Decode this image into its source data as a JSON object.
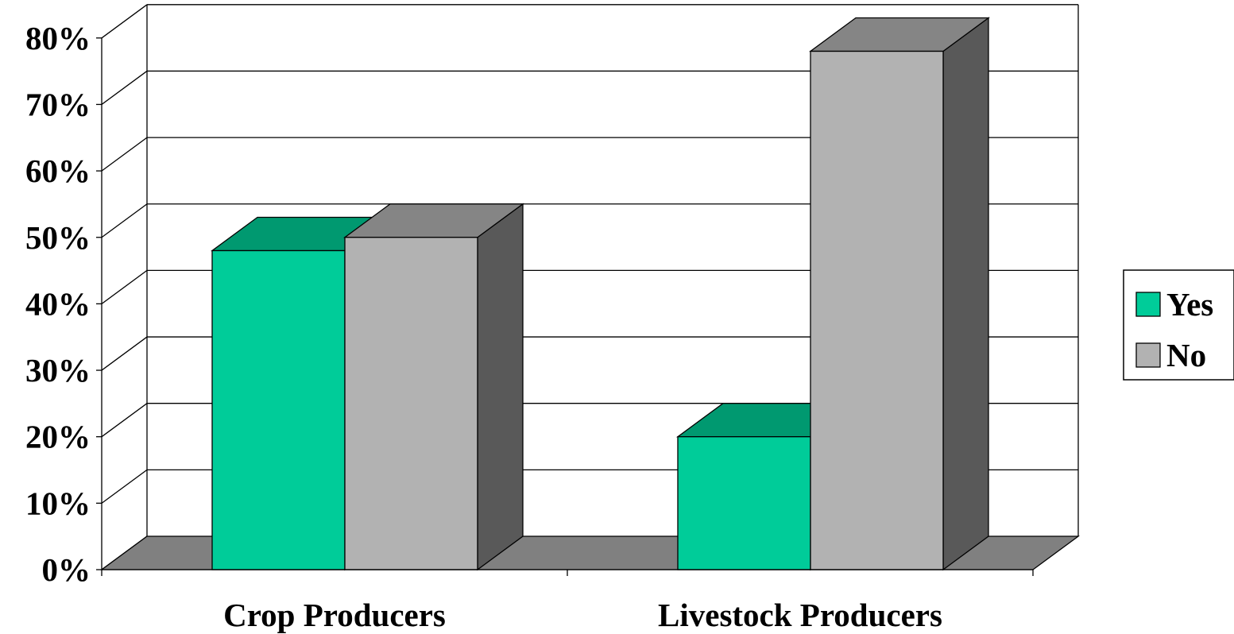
{
  "chart_data": {
    "type": "bar",
    "three_d": true,
    "categories": [
      "Crop Producers",
      "Livestock Producers"
    ],
    "series": [
      {
        "name": "Yes",
        "values": [
          48,
          20
        ]
      },
      {
        "name": "No",
        "values": [
          50,
          78
        ]
      }
    ],
    "ylim": [
      0,
      80
    ],
    "yticks": [
      "0%",
      "10%",
      "20%",
      "30%",
      "40%",
      "50%",
      "60%",
      "70%",
      "80%"
    ],
    "grid": true,
    "legend_position": "right",
    "colors": {
      "Yes": {
        "face": "#00CC99",
        "top": "#009970",
        "side": "#007a5c"
      },
      "No": {
        "face": "#B2B2B2",
        "top": "#858585",
        "side": "#595959"
      },
      "floor": "#808080"
    }
  }
}
